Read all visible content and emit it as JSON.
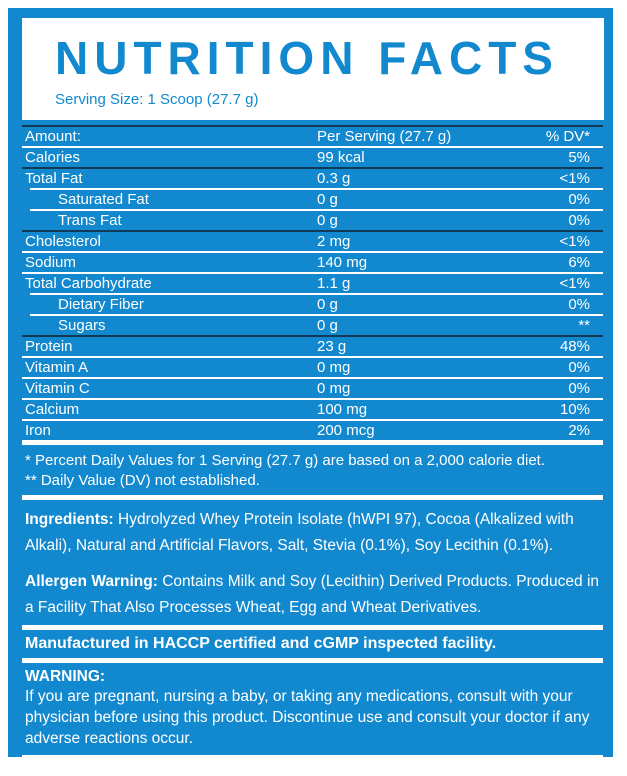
{
  "colors": {
    "brand_blue": "#1289cf",
    "dark_line": "#123a55",
    "text_white": "#ffffff"
  },
  "header": {
    "title": "NUTRITION FACTS",
    "serving_size": "Serving Size: 1 Scoop (27.7 g)"
  },
  "table": {
    "header": {
      "label": "Amount:",
      "amount": "Per Serving (27.7 g)",
      "dv": "% DV*"
    },
    "rows": [
      {
        "label": "Calories",
        "amount": "99 kcal",
        "dv": "5%",
        "indent": false,
        "divider": "dark"
      },
      {
        "label": "Total Fat",
        "amount": "0.3 g",
        "dv": "<1%",
        "indent": false,
        "divider": "indent"
      },
      {
        "label": "Saturated Fat",
        "amount": "0 g",
        "dv": "0%",
        "indent": true,
        "divider": "indent"
      },
      {
        "label": "Trans Fat",
        "amount": "0 g",
        "dv": "0%",
        "indent": true,
        "divider": "dark"
      },
      {
        "label": "Cholesterol",
        "amount": "2 mg",
        "dv": "<1%",
        "indent": false,
        "divider": "white"
      },
      {
        "label": "Sodium",
        "amount": "140 mg",
        "dv": "6%",
        "indent": false,
        "divider": "white"
      },
      {
        "label": "Total Carbohydrate",
        "amount": "1.1 g",
        "dv": "<1%",
        "indent": false,
        "divider": "indent"
      },
      {
        "label": "Dietary Fiber",
        "amount": "0 g",
        "dv": "0%",
        "indent": true,
        "divider": "indent"
      },
      {
        "label": "Sugars",
        "amount": "0 g",
        "dv": "**",
        "indent": true,
        "divider": "dark"
      },
      {
        "label": "Protein",
        "amount": "23 g",
        "dv": "48%",
        "indent": false,
        "divider": "white"
      },
      {
        "label": "Vitamin A",
        "amount": "0 mg",
        "dv": "0%",
        "indent": false,
        "divider": "white"
      },
      {
        "label": "Vitamin C",
        "amount": "0 mg",
        "dv": "0%",
        "indent": false,
        "divider": "white"
      },
      {
        "label": "Calcium",
        "amount": "100 mg",
        "dv": "10%",
        "indent": false,
        "divider": "white"
      },
      {
        "label": "Iron",
        "amount": "200 mcg",
        "dv": "2%",
        "indent": false,
        "divider": "thick"
      }
    ]
  },
  "footnotes": {
    "line1": "* Percent Daily Values for 1 Serving (27.7 g) are based on a 2,000 calorie diet.",
    "line2": "** Daily Value (DV) not established."
  },
  "ingredients": {
    "label": "Ingredients:",
    "text": " Hydrolyzed Whey Protein Isolate (hWPI 97), Cocoa (Alkalized with Alkali), Natural and Artificial Flavors, Salt, Stevia (0.1%), Soy Lecithin (0.1%)."
  },
  "allergen": {
    "label": "Allergen Warning:",
    "text": " Contains Milk and Soy (Lecithin) Derived Products. Produced in a Facility That Also Processes Wheat, Egg and Wheat Derivatives."
  },
  "manufactured": "Manufactured in HACCP certified and cGMP inspected facility.",
  "warning": {
    "label": "WARNING:",
    "text": "If you are pregnant, nursing a baby, or taking any medications, consult with your physician before using this product. Discontinue use and consult your doctor if any adverse reactions occur."
  }
}
